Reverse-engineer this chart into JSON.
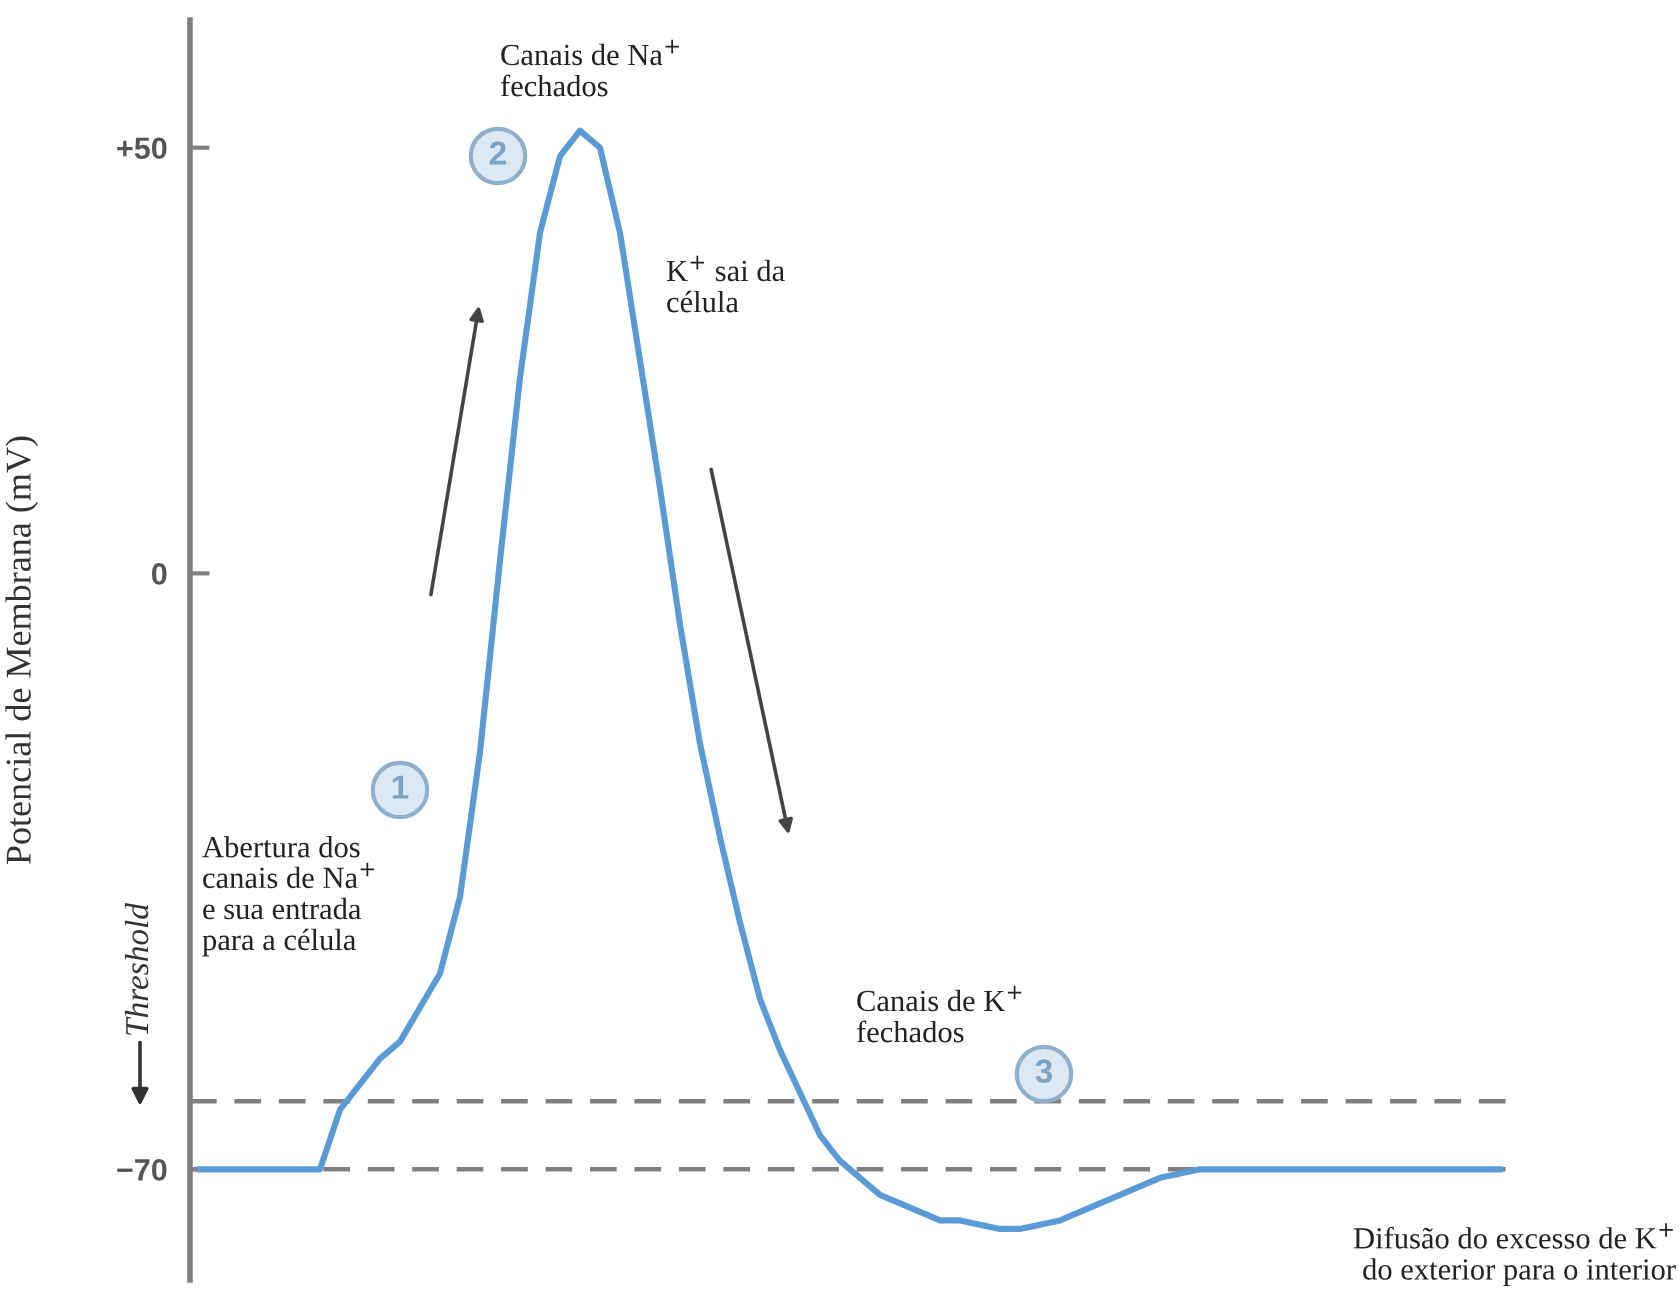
{
  "chart_data": {
    "type": "line",
    "ylabel": "Potencial de Membrana (mV)",
    "categories": [
      null,
      null,
      null,
      null,
      null,
      null,
      null,
      null,
      null,
      null,
      null,
      null,
      null,
      null,
      null,
      null,
      null,
      null,
      null,
      null,
      null,
      null,
      null,
      null,
      null,
      null,
      null,
      null,
      null,
      null,
      null,
      null,
      null,
      null,
      null,
      null,
      null,
      null,
      null,
      null,
      null,
      null,
      null,
      null,
      null,
      null,
      null,
      null,
      null,
      null,
      null,
      null,
      null,
      null,
      null,
      null,
      null,
      null,
      null,
      null,
      null,
      null,
      null,
      null,
      null,
      null
    ],
    "series": [
      {
        "color": "#5b9bd5",
        "values": [
          -70,
          -70,
          -70,
          -70,
          -70,
          -70,
          -70,
          -63,
          -60,
          -57,
          -55,
          -51,
          -47,
          -38,
          -21,
          1.5,
          23,
          40,
          49,
          52,
          50,
          40,
          25,
          10,
          -6,
          -20,
          -31,
          -41,
          -50,
          -56,
          -61,
          -66,
          -69,
          -71,
          -73,
          -74,
          -75,
          -76,
          -76,
          -76.5,
          -77,
          -77,
          -76.5,
          -76,
          -75,
          -74,
          -73,
          -72,
          -71,
          -70.5,
          -70,
          -70,
          -70,
          -70,
          -70,
          -70,
          -70,
          -70,
          -70,
          -70,
          -70,
          -70,
          -70,
          -70,
          -70,
          -70
        ]
      }
    ],
    "ylim": [
      -83,
      65
    ],
    "yticks": [
      {
        "value": 50,
        "label": "+50"
      },
      0,
      {
        "value": -70,
        "label": "−70"
      }
    ],
    "ref_lines": [
      {
        "axis": "y",
        "value": -62,
        "label": "Threshold",
        "color": "#808080",
        "line_style": "dashed"
      },
      {
        "axis": "y",
        "value": -70,
        "color": "#808080",
        "line_style": "dashed"
      }
    ],
    "annotations": [
      "Canais de Na$^{+}$\nfechados",
      "K$^{+}$ sai da\ncélula",
      "Abertura dos\ncanais de Na$^{+}$\ne sua entrada\npara a célula",
      "Canais de K$^{+}$\nfechados",
      "Difusão do excesso de K$^{+}$\ndo exterior para o interior",
      "1",
      "2",
      "3"
    ],
    "grid": false,
    "legend": false,
    "marker": "none",
    "line_style": "solid"
  }
}
